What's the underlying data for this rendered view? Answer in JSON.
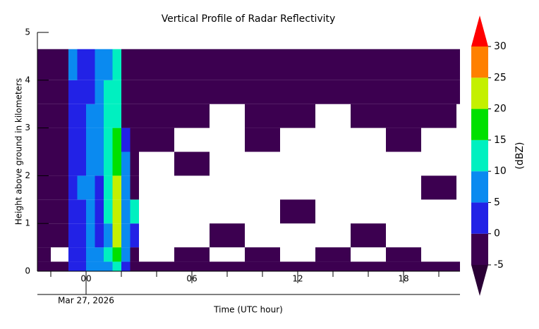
{
  "chart_data": {
    "type": "heatmap",
    "title": "Vertical Profile of Radar Reflectivity",
    "x_label": "Time (UTC hour)",
    "y_label": "Height above ground in kilometers",
    "date_label": "Mar 27, 2026",
    "xlim": [
      -2.76,
      21.2
    ],
    "ylim": [
      0,
      5
    ],
    "xticks": [
      {
        "value": 0,
        "label": "00"
      },
      {
        "value": 6,
        "label": "06"
      },
      {
        "value": 12,
        "label": "12"
      },
      {
        "value": 18,
        "label": "18"
      }
    ],
    "xticks_minor": [
      -2,
      2,
      4,
      8,
      10,
      14,
      16,
      20
    ],
    "yticks": [
      0,
      1,
      2,
      3,
      4,
      5
    ],
    "x_edges": [
      -2.75,
      -2,
      -1,
      -0.5,
      0,
      0.5,
      1,
      1.5,
      2,
      2.5,
      3,
      5,
      7,
      9,
      11,
      13,
      15,
      17,
      19,
      21,
      21.2
    ],
    "y_edges": [
      0,
      0.2,
      0.5,
      1,
      1.5,
      2,
      2.5,
      3,
      3.5,
      4,
      4.65
    ],
    "z": [
      [
        -3,
        -3,
        2,
        2,
        6,
        6,
        8,
        12,
        4,
        -2,
        -3,
        -3,
        -3,
        -3,
        -3,
        -3,
        -3,
        -3,
        -3,
        -3
      ],
      [
        -4,
        null,
        3,
        2,
        7,
        5,
        10,
        18,
        6,
        -2,
        null,
        -4,
        null,
        -4,
        null,
        -4,
        null,
        -4,
        null,
        null
      ],
      [
        -4,
        -4,
        2,
        1,
        6,
        3,
        9,
        20,
        7,
        4,
        null,
        null,
        -4,
        null,
        null,
        null,
        -4,
        null,
        null,
        null
      ],
      [
        -4,
        -4,
        3,
        4,
        6,
        3,
        10,
        22,
        5,
        12,
        null,
        null,
        null,
        null,
        -4,
        null,
        null,
        null,
        null,
        null
      ],
      [
        -4,
        -4,
        3,
        5,
        7,
        4,
        10,
        20,
        8,
        -2,
        null,
        null,
        null,
        null,
        null,
        null,
        null,
        null,
        -4,
        null
      ],
      [
        -4,
        -3,
        2,
        4,
        8,
        5,
        12,
        18,
        5,
        -3,
        null,
        -4,
        null,
        null,
        null,
        null,
        null,
        null,
        null,
        null
      ],
      [
        -4,
        -3,
        2,
        3,
        6,
        6,
        12,
        16,
        3,
        -3,
        -4,
        null,
        null,
        -4,
        null,
        null,
        null,
        -4,
        null,
        null
      ],
      [
        -3,
        -2,
        3,
        2,
        5,
        6,
        10,
        14,
        -2,
        -4,
        -4,
        -4,
        null,
        -4,
        -4,
        null,
        -4,
        -4,
        -4,
        null
      ],
      [
        -2,
        -2,
        4,
        2,
        4,
        6,
        10,
        12,
        -2,
        -3,
        -3,
        -3,
        -3,
        -3,
        -3,
        -3,
        -3,
        -3,
        -3,
        -3
      ],
      [
        -1,
        -1,
        5,
        2,
        3,
        5,
        8,
        14,
        -2,
        -2,
        -2,
        -2,
        -2,
        -2,
        -2,
        -2,
        -2,
        -2,
        -2,
        -2
      ]
    ],
    "colorbar": {
      "label": "(dBZ)",
      "levels": [
        -5,
        0,
        5,
        10,
        15,
        20,
        25,
        30
      ],
      "colors": [
        "#3c0050",
        "#2222e6",
        "#0a8af0",
        "#00f0c0",
        "#00e000",
        "#c4f000",
        "#ff8000"
      ],
      "under_color": "#2a0035",
      "over_color": "#ff0000"
    }
  }
}
